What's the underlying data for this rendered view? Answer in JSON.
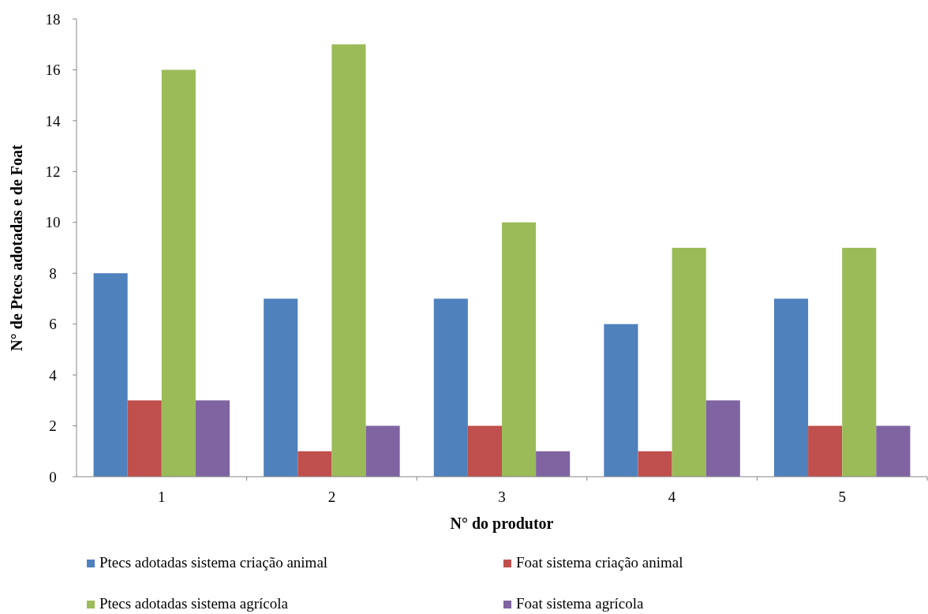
{
  "chart_data": {
    "type": "bar",
    "xlabel": "N° do produtor",
    "ylabel": "N° de Ptecs adotadas e de Foat",
    "categories": [
      "1",
      "2",
      "3",
      "4",
      "5"
    ],
    "series": [
      {
        "name": "Ptecs adotadas sistema criação animal",
        "color": "#4f81bd",
        "values": [
          8,
          7,
          7,
          6,
          7
        ]
      },
      {
        "name": "Foat sistema criação animal",
        "color": "#c0504d",
        "values": [
          3,
          1,
          2,
          1,
          2
        ]
      },
      {
        "name": "Ptecs adotadas sistema agrícola",
        "color": "#9bbb59",
        "values": [
          16,
          17,
          10,
          9,
          9
        ]
      },
      {
        "name": "Foat sistema agrícola",
        "color": "#8064a2",
        "values": [
          3,
          2,
          1,
          3,
          2
        ]
      }
    ],
    "ylim": [
      0,
      18
    ],
    "yticks": [
      0,
      2,
      4,
      6,
      8,
      10,
      12,
      14,
      16,
      18
    ],
    "grid": false,
    "legend": "bottom"
  }
}
